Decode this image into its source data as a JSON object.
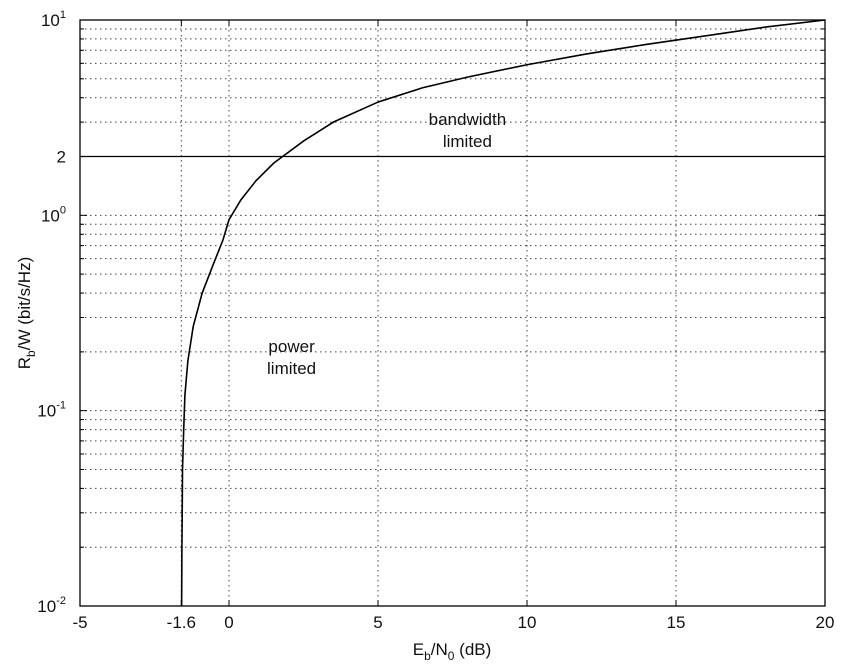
{
  "chart_data": {
    "type": "line",
    "xlabel": {
      "main": "E",
      "sub1": "b",
      "mid": "/N",
      "sub2": "0",
      "tail": " (dB)"
    },
    "ylabel": {
      "main": "R",
      "sub": "b",
      "tail": "/W (bit/s/Hz)"
    },
    "xlim": [
      -5,
      20
    ],
    "ylim": [
      0.01,
      10
    ],
    "yscale": "log",
    "grid": true,
    "x_ticks": [
      {
        "value": -5,
        "label": "-5"
      },
      {
        "value": -1.6,
        "label": "-1.6"
      },
      {
        "value": 0,
        "label": "0"
      },
      {
        "value": 5,
        "label": "5"
      },
      {
        "value": 10,
        "label": "10"
      },
      {
        "value": 15,
        "label": "15"
      },
      {
        "value": 20,
        "label": "20"
      }
    ],
    "y_ticks": [
      {
        "value": 0.01,
        "base": "10",
        "exp": "-2"
      },
      {
        "value": 0.1,
        "base": "10",
        "exp": "-1"
      },
      {
        "value": 1,
        "base": "10",
        "exp": "0"
      },
      {
        "value": 2,
        "base": "2",
        "exp": ""
      },
      {
        "value": 10,
        "base": "10",
        "exp": "1"
      }
    ],
    "series": [
      {
        "x": [
          -1.59,
          -1.58,
          -1.57,
          -1.56,
          -1.52,
          -1.48,
          -1.38,
          -1.2,
          -0.9,
          -0.55,
          -0.2,
          0.0,
          0.4,
          0.9,
          1.5,
          1.8,
          2.5,
          3.5,
          5.0,
          6.5,
          8.0,
          10.0,
          12.0,
          14.0,
          16.0,
          18.0,
          20.0
        ],
        "y": [
          0.01,
          0.02,
          0.03,
          0.05,
          0.08,
          0.12,
          0.18,
          0.27,
          0.4,
          0.55,
          0.75,
          0.95,
          1.2,
          1.5,
          1.85,
          2.0,
          2.4,
          3.0,
          3.8,
          4.5,
          5.1,
          5.9,
          6.7,
          7.5,
          8.3,
          9.2,
          10.0
        ]
      }
    ],
    "reference_lines": [
      {
        "y": 2
      }
    ],
    "annotations": [
      {
        "lines": [
          "bandwidth",
          "limited"
        ],
        "x": 8.0,
        "y": 2.9
      },
      {
        "lines": [
          "power",
          "limited"
        ],
        "x": 2.1,
        "y": 0.2
      }
    ]
  }
}
